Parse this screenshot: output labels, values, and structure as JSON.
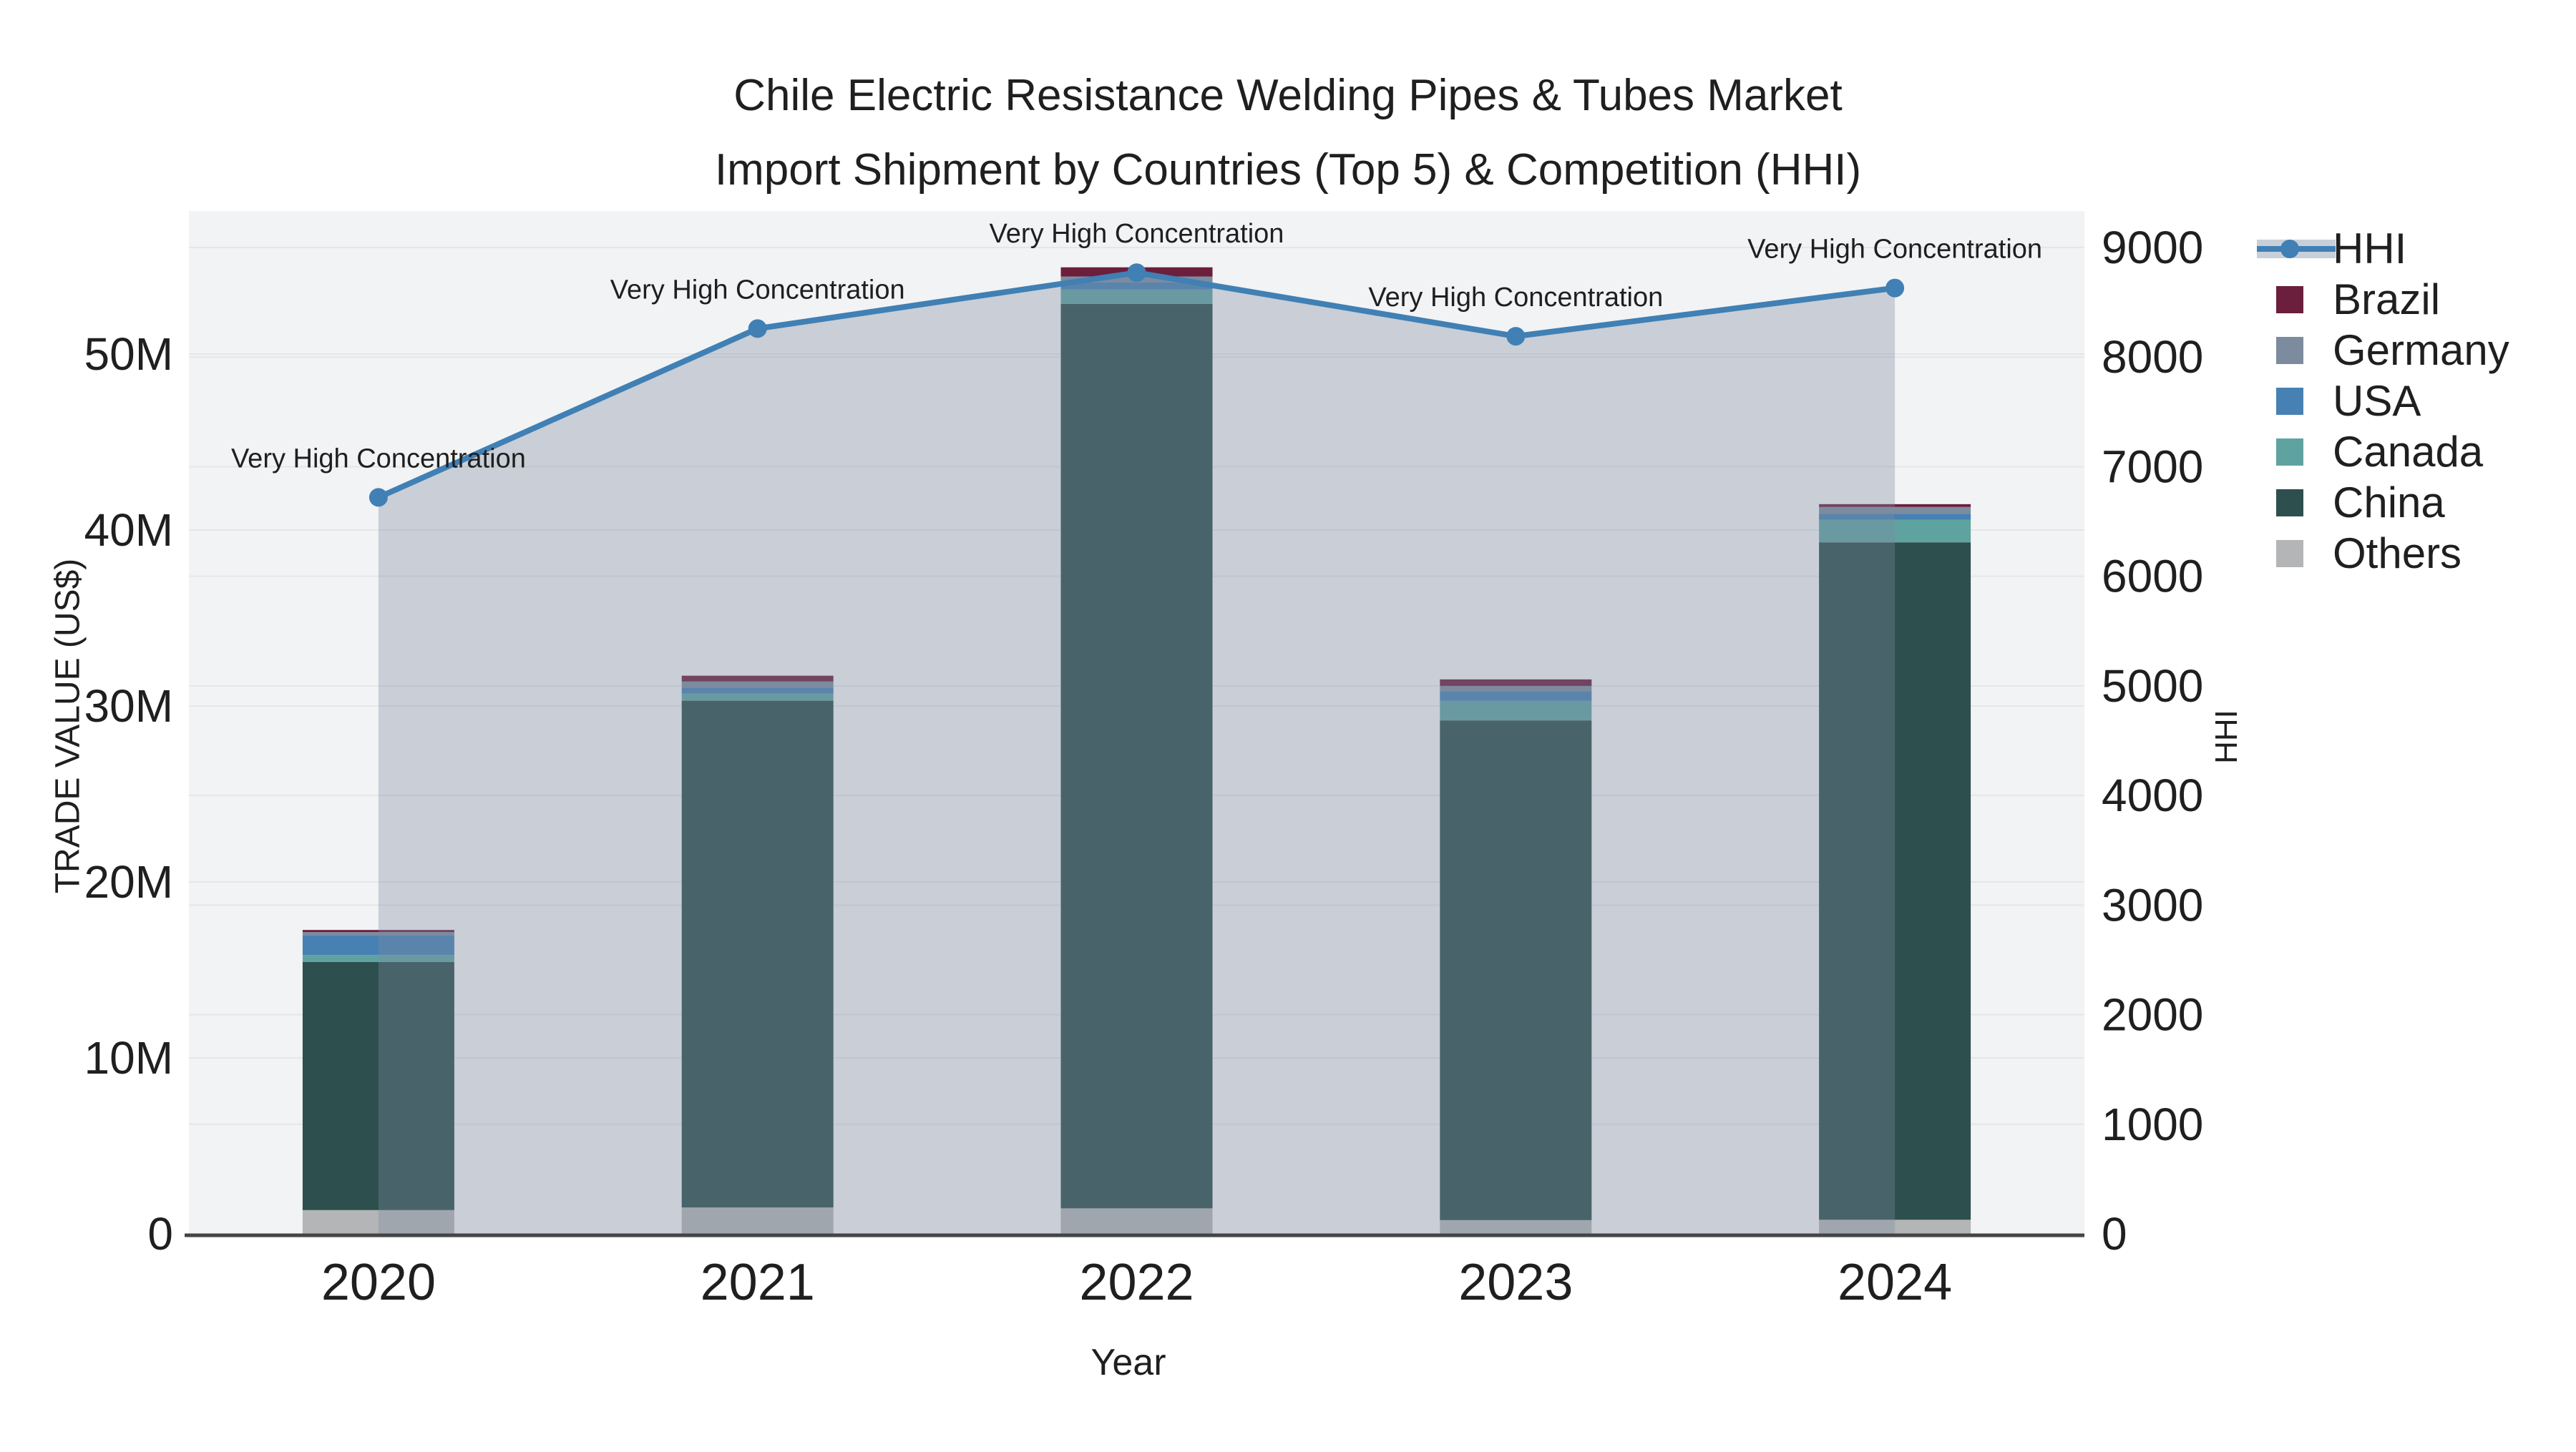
{
  "chart_data": {
    "type": "bar+line",
    "title_line1": "Chile Electric Resistance Welding Pipes & Tubes Market",
    "title_line2": "Import Shipment by Countries (Top 5) & Competition (HHI)",
    "xlabel": "Year",
    "ylabel_left": "TRADE VALUE (US$)",
    "ylabel_right": "HHI",
    "categories": [
      "2020",
      "2021",
      "2022",
      "2023",
      "2024"
    ],
    "stack_order_bottom_to_top": [
      "Others",
      "China",
      "Canada",
      "USA",
      "Germany",
      "Brazil"
    ],
    "series": [
      {
        "name": "Others",
        "color": "#b3b5b6",
        "values": [
          1350000,
          1500000,
          1450000,
          780000,
          800000
        ]
      },
      {
        "name": "China",
        "color": "#2d4f4e",
        "values": [
          14100000,
          28800000,
          51400000,
          28400000,
          38500000
        ]
      },
      {
        "name": "Canada",
        "color": "#5fa3a1",
        "values": [
          400000,
          410000,
          830000,
          1110000,
          1290000
        ]
      },
      {
        "name": "USA",
        "color": "#4781b3",
        "values": [
          1100000,
          330000,
          400000,
          540000,
          340000
        ]
      },
      {
        "name": "Germany",
        "color": "#7c8c9e",
        "values": [
          200000,
          350000,
          330000,
          310000,
          380000
        ]
      },
      {
        "name": "Brazil",
        "color": "#6b1f3d",
        "values": [
          120000,
          330000,
          520000,
          370000,
          160000
        ]
      }
    ],
    "hhi": {
      "name": "HHI",
      "line_color": "#4080b4",
      "fill_color": "rgba(125,138,160,0.35)",
      "values": [
        6720,
        8260,
        8770,
        8190,
        8630
      ]
    },
    "annotations": [
      {
        "x": "2020",
        "text": "Very High Concentration"
      },
      {
        "x": "2021",
        "text": "Very High Concentration"
      },
      {
        "x": "2022",
        "text": "Very High Concentration"
      },
      {
        "x": "2023",
        "text": "Very High Concentration"
      },
      {
        "x": "2024",
        "text": "Very High Concentration"
      }
    ],
    "y_left_axis": {
      "tick_labels": [
        "0",
        "10M",
        "20M",
        "30M",
        "40M",
        "50M"
      ],
      "tick_values_usd": [
        0,
        10000000,
        20000000,
        30000000,
        40000000,
        50000000
      ],
      "range_usd": [
        0,
        58100000
      ],
      "grid": true
    },
    "y_right_axis": {
      "tick_labels": [
        "0",
        "1000",
        "2000",
        "3000",
        "4000",
        "5000",
        "6000",
        "7000",
        "8000",
        "9000"
      ],
      "tick_values": [
        0,
        1000,
        2000,
        3000,
        4000,
        5000,
        6000,
        7000,
        8000,
        9000
      ],
      "range": [
        0,
        9330
      ],
      "grid": true
    },
    "legend": {
      "position": "right",
      "items": [
        {
          "label": "HHI",
          "type": "line",
          "color": "#4080b4"
        },
        {
          "label": "Brazil",
          "type": "square",
          "color": "#6b1f3d"
        },
        {
          "label": "Germany",
          "type": "square",
          "color": "#7c8c9e"
        },
        {
          "label": "USA",
          "type": "square",
          "color": "#4781b3"
        },
        {
          "label": "Canada",
          "type": "square",
          "color": "#5fa3a1"
        },
        {
          "label": "China",
          "type": "square",
          "color": "#2d4f4e"
        },
        {
          "label": "Others",
          "type": "square",
          "color": "#b3b5b6"
        }
      ]
    },
    "colors": {
      "plot_background": "#f2f3f4",
      "page_background": "#ffffff",
      "gridline": "#e4e6e9",
      "axis_line": "#444444",
      "text": "#1f1f1f"
    }
  }
}
